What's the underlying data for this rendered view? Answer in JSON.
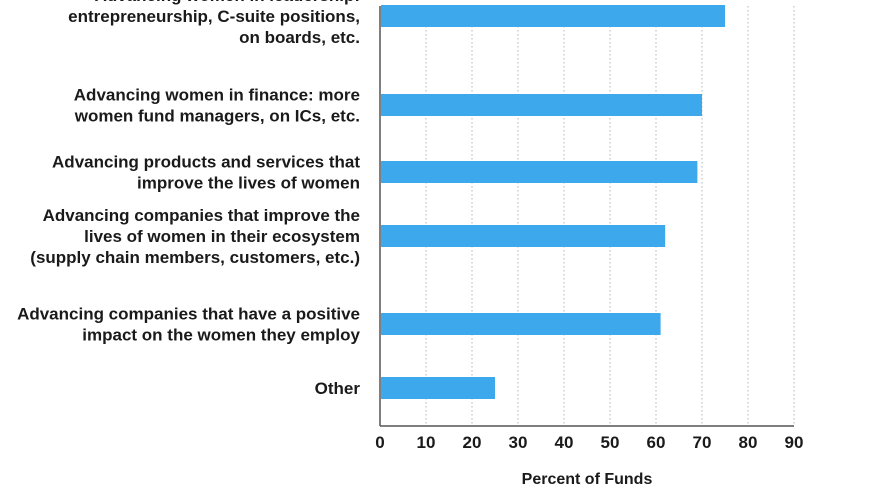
{
  "chart_data": {
    "type": "bar",
    "orientation": "horizontal",
    "categories": [
      [
        "Advancing women in leadership:",
        "entrepreneurship, C-suite positions,",
        "on boards, etc."
      ],
      [
        "Advancing women in finance: more",
        "women fund managers, on ICs, etc."
      ],
      [
        "Advancing products and services that",
        "improve the lives of women"
      ],
      [
        "Advancing companies that improve the",
        "lives of women in their ecosystem",
        "(supply chain members, customers, etc.)"
      ],
      [
        "Advancing companies that have a positive",
        "impact on the women they employ"
      ],
      [
        "Other"
      ]
    ],
    "values": [
      75,
      70,
      69,
      62,
      61,
      25
    ],
    "xlabel": "Percent of Funds",
    "ylabel": "",
    "xlim": [
      0,
      90
    ],
    "xticks": [
      "0",
      "10",
      "20",
      "30",
      "40",
      "50",
      "60",
      "70",
      "80",
      "90"
    ],
    "grid": "vertical dotted",
    "bar_color": "#3da9ec"
  }
}
